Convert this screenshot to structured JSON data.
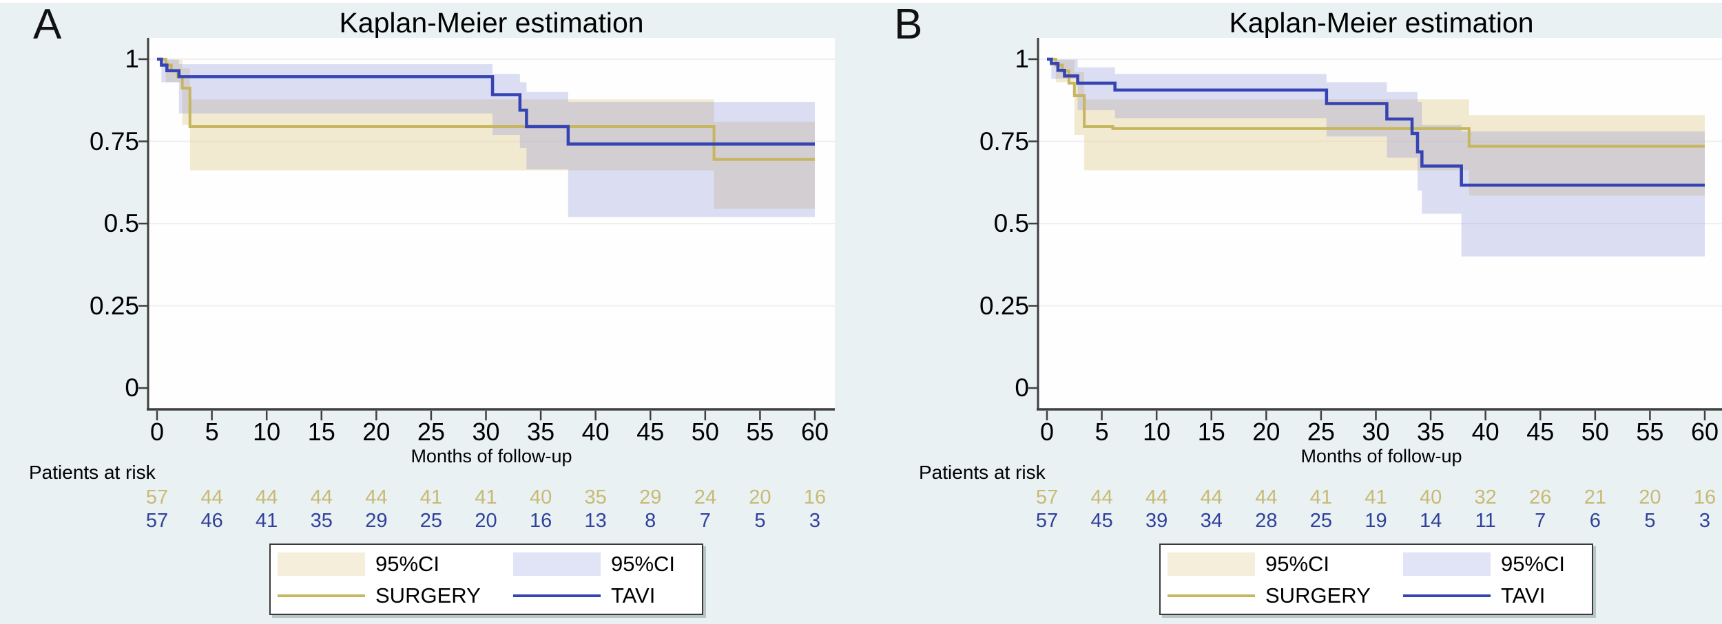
{
  "figure": {
    "background": "#e9f1f3",
    "top_strip": "#ffffff",
    "plot_background": "#fefefe",
    "grid_color": "#f1eef0",
    "axis_color": "#3f3f3f",
    "surgery_line_color": "#c6b65f",
    "tavi_line_color": "#3643b2",
    "surgery_ci_fill": "rgba(224,205,140,0.40)",
    "tavi_ci_fill": "rgba(124,134,213,0.27)",
    "surgery_risk_text_color": "#c8ba74",
    "tavi_risk_text_color": "#31419b",
    "legend_tan_swatch": "#f4eeda",
    "legend_lavender_swatch": "#e1e3f6"
  },
  "legend": {
    "ci_label": "95%CI",
    "surgery_label": "SURGERY",
    "tavi_label": "TAVI"
  },
  "chart_data": [
    {
      "type": "line",
      "subtype": "kaplan-meier-step",
      "letter": "A",
      "title": "Kaplan-Meier estimation",
      "xlabel": "Months of follow-up",
      "ylabel": "",
      "xlim": [
        0,
        60
      ],
      "ylim": [
        0,
        1
      ],
      "xticks": [
        0,
        5,
        10,
        15,
        20,
        25,
        30,
        35,
        40,
        45,
        50,
        55,
        60
      ],
      "yticks": [
        {
          "v": 0,
          "label": "0"
        },
        {
          "v": 0.25,
          "label": "0.25"
        },
        {
          "v": 0.5,
          "label": "0.5"
        },
        {
          "v": 0.75,
          "label": "0.75"
        },
        {
          "v": 1,
          "label": "1"
        }
      ],
      "grid": true,
      "legend_position": "bottom-center",
      "risk_title": "Patients at risk",
      "series": [
        {
          "name": "SURGERY",
          "steps": [
            [
              0,
              1
            ],
            [
              0.8,
              0.982
            ],
            [
              1.3,
              0.964
            ],
            [
              1.9,
              0.947
            ],
            [
              2.3,
              0.912
            ],
            [
              3,
              0.795
            ],
            [
              50.8,
              0.695
            ]
          ],
          "ci": [
            [
              0.8,
              0.93,
              0.998
            ],
            [
              2.3,
              0.8,
              0.972
            ],
            [
              3,
              0.662,
              0.878
            ],
            [
              50.8,
              0.545,
              0.81
            ]
          ],
          "at_risk": [
            57,
            44,
            44,
            44,
            44,
            41,
            41,
            40,
            35,
            29,
            24,
            20,
            16
          ]
        },
        {
          "name": "TAVI",
          "steps": [
            [
              0,
              1
            ],
            [
              0.4,
              0.982
            ],
            [
              0.9,
              0.965
            ],
            [
              2,
              0.947
            ],
            [
              30.6,
              0.892
            ],
            [
              33.1,
              0.845
            ],
            [
              33.7,
              0.795
            ],
            [
              37.5,
              0.742
            ]
          ],
          "ci": [
            [
              0.4,
              0.93,
              0.999
            ],
            [
              2,
              0.835,
              0.985
            ],
            [
              30.6,
              0.77,
              0.955
            ],
            [
              33.1,
              0.73,
              0.93
            ],
            [
              33.7,
              0.665,
              0.9
            ],
            [
              37.5,
              0.52,
              0.87
            ]
          ],
          "at_risk": [
            57,
            46,
            41,
            35,
            29,
            25,
            20,
            16,
            13,
            8,
            7,
            5,
            3
          ]
        }
      ]
    },
    {
      "type": "line",
      "subtype": "kaplan-meier-step",
      "letter": "B",
      "title": "Kaplan-Meier estimation",
      "xlabel": "Months of follow-up",
      "ylabel": "",
      "xlim": [
        0,
        60
      ],
      "ylim": [
        0,
        1
      ],
      "xticks": [
        0,
        5,
        10,
        15,
        20,
        25,
        30,
        35,
        40,
        45,
        50,
        55,
        60
      ],
      "yticks": [
        {
          "v": 0,
          "label": "0"
        },
        {
          "v": 0.25,
          "label": "0.25"
        },
        {
          "v": 0.5,
          "label": "0.5"
        },
        {
          "v": 0.75,
          "label": "0.75"
        },
        {
          "v": 1,
          "label": "1"
        }
      ],
      "grid": true,
      "legend_position": "bottom-center",
      "risk_title": "Patients at risk",
      "series": [
        {
          "name": "SURGERY",
          "steps": [
            [
              0,
              1
            ],
            [
              0.8,
              0.982
            ],
            [
              1.4,
              0.964
            ],
            [
              2,
              0.927
            ],
            [
              2.5,
              0.889
            ],
            [
              3.4,
              0.795
            ],
            [
              6,
              0.789
            ],
            [
              38.5,
              0.735
            ]
          ],
          "ci": [
            [
              0.8,
              0.93,
              0.998
            ],
            [
              2.5,
              0.77,
              0.96
            ],
            [
              3.4,
              0.662,
              0.878
            ],
            [
              38.5,
              0.585,
              0.83
            ]
          ],
          "at_risk": [
            57,
            44,
            44,
            44,
            44,
            41,
            41,
            40,
            32,
            26,
            21,
            20,
            16
          ]
        },
        {
          "name": "TAVI",
          "steps": [
            [
              0,
              1
            ],
            [
              0.4,
              0.987
            ],
            [
              1,
              0.966
            ],
            [
              1.6,
              0.949
            ],
            [
              2.8,
              0.927
            ],
            [
              6.2,
              0.906
            ],
            [
              25.5,
              0.865
            ],
            [
              31,
              0.818
            ],
            [
              33.3,
              0.774
            ],
            [
              33.8,
              0.718
            ],
            [
              34.2,
              0.675
            ],
            [
              37.8,
              0.617
            ]
          ],
          "ci": [
            [
              0.4,
              0.94,
              0.999
            ],
            [
              2.8,
              0.845,
              0.975
            ],
            [
              6.2,
              0.82,
              0.955
            ],
            [
              25.5,
              0.765,
              0.93
            ],
            [
              31,
              0.7,
              0.9
            ],
            [
              33.8,
              0.6,
              0.87
            ],
            [
              34.2,
              0.53,
              0.8
            ],
            [
              37.8,
              0.4,
              0.78
            ]
          ],
          "at_risk": [
            57,
            45,
            39,
            34,
            28,
            25,
            19,
            14,
            11,
            7,
            6,
            5,
            3
          ]
        }
      ]
    }
  ]
}
